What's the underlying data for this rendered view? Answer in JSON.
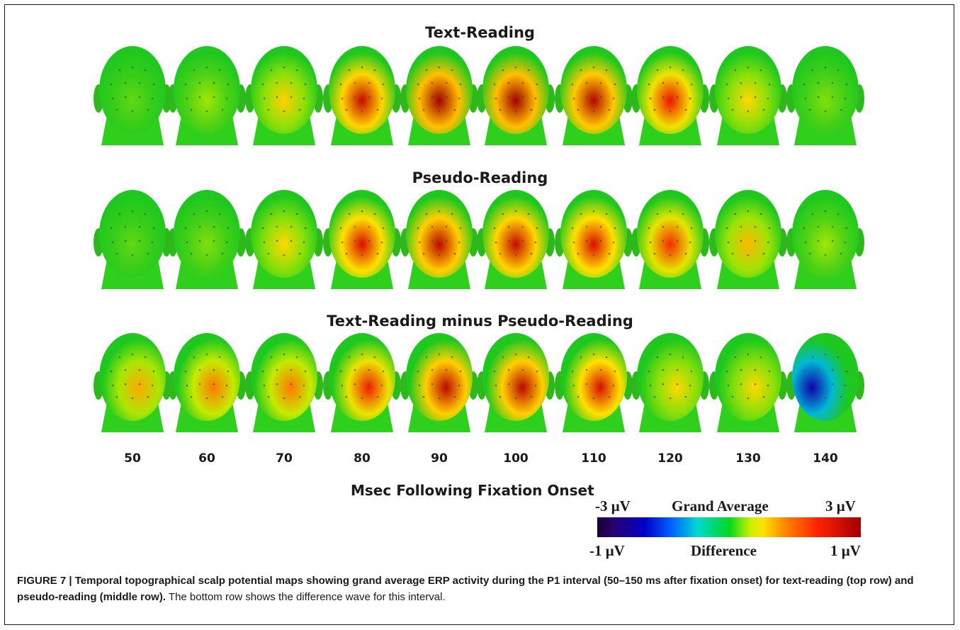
{
  "figure": {
    "rows": [
      {
        "title": "Text-Reading",
        "scale": "grand",
        "maps": [
          0.2,
          0.4,
          0.95,
          2.6,
          3.0,
          3.0,
          2.8,
          2.2,
          0.9,
          0.3
        ]
      },
      {
        "title": "Pseudo-Reading",
        "scale": "grand",
        "maps": [
          0.2,
          0.3,
          0.9,
          2.4,
          2.7,
          2.6,
          2.4,
          2.0,
          1.1,
          0.4
        ]
      },
      {
        "title": "Text-Reading minus Pseudo-Reading",
        "scale": "difference",
        "maps": [
          0.4,
          0.5,
          0.5,
          0.7,
          0.9,
          0.9,
          0.8,
          0.3,
          0.3,
          -0.7
        ]
      }
    ],
    "time_ticks": [
      "50",
      "60",
      "70",
      "80",
      "90",
      "100",
      "110",
      "120",
      "130",
      "140"
    ],
    "xlabel": "Msec Following Fixation Onset",
    "colorbar": {
      "grand_average_label": "Grand Average",
      "grand_min": "-3 μV",
      "grand_max": "3 μV",
      "difference_label": "Difference",
      "difference_min": "-1 μV",
      "difference_max": "1 μV"
    },
    "caption": {
      "lead": "FIGURE 7 | Temporal topographical scalp potential maps showing grand average ERP activity during the P1 interval (50–150 ms after fixation onset) for text-reading (top row) and pseudo-reading (middle row).",
      "rest": " The bottom row shows the difference wave for this interval."
    }
  }
}
